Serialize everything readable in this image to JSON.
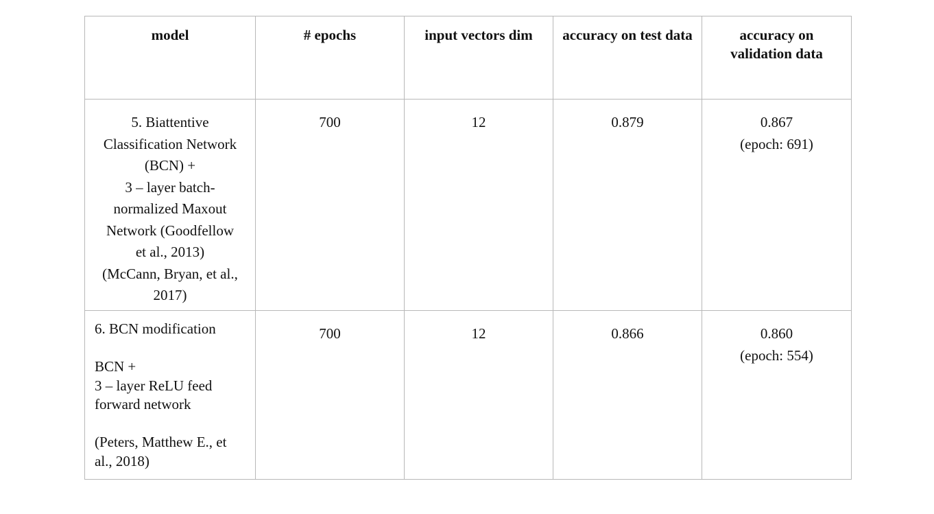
{
  "table": {
    "headers": [
      "model",
      "# epochs",
      "input vectors dim",
      "accuracy on test data",
      "accuracy on validation data"
    ],
    "rows": [
      {
        "model_lines": [
          "5. Biattentive",
          "Classification Network",
          "(BCN) +",
          "3 – layer batch-",
          "normalized Maxout",
          "Network (Goodfellow",
          "et al., 2013)",
          "(McCann, Bryan, et al.,",
          "2017)"
        ],
        "epochs": "700",
        "input_dim": "12",
        "acc_test": "0.879",
        "acc_validation": "0.867",
        "acc_validation_epoch": "(epoch: 691)"
      },
      {
        "model_title": "6. BCN modification",
        "model_body_lines": [
          "BCN +",
          "3 – layer ReLU feed",
          "forward network"
        ],
        "model_citation_lines": [
          "(Peters, Matthew E., et",
          "al., 2018)"
        ],
        "epochs": "700",
        "input_dim": "12",
        "acc_test": "0.866",
        "acc_validation": "0.860",
        "acc_validation_epoch": "(epoch: 554)"
      }
    ]
  }
}
